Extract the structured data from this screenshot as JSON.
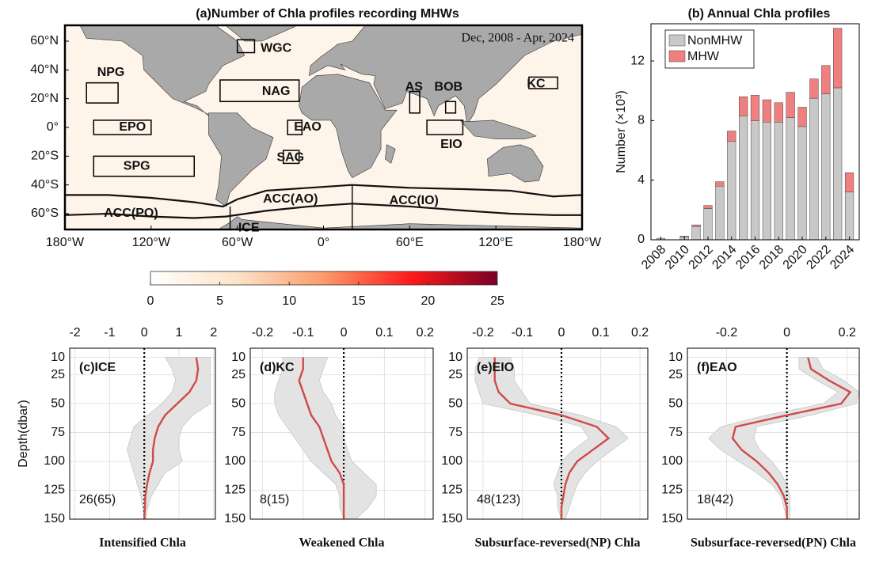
{
  "chart_data": [
    {
      "type": "map",
      "title": "(a)Number of Chla profiles recording MHWs",
      "subtitle": "Dec, 2008 - Apr, 2024",
      "xlim": [
        -180,
        180
      ],
      "ylim": [
        -71,
        71
      ],
      "xticks": [
        {
          "value": -180,
          "label": "180°W"
        },
        {
          "value": -120,
          "label": "120°W"
        },
        {
          "value": -60,
          "label": "60°W"
        },
        {
          "value": 0,
          "label": "0°"
        },
        {
          "value": 60,
          "label": "60°E"
        },
        {
          "value": 120,
          "label": "120°E"
        },
        {
          "value": 180,
          "label": "180°W"
        }
      ],
      "yticks": [
        {
          "value": 60,
          "label": "60°N"
        },
        {
          "value": 40,
          "label": "40°N"
        },
        {
          "value": 20,
          "label": "20°N"
        },
        {
          "value": 0,
          "label": "0°"
        },
        {
          "value": -20,
          "label": "20°S"
        },
        {
          "value": -40,
          "label": "40°S"
        },
        {
          "value": -60,
          "label": "60°S"
        }
      ],
      "regions": [
        "NPG",
        "WGC",
        "NAG",
        "AS",
        "BOB",
        "KC",
        "EPO",
        "EAO",
        "EIO",
        "SAG",
        "SPG",
        "ACC(AO)",
        "ACC(IO)",
        "ACC(PO)",
        "ICE"
      ],
      "colorbar": {
        "lim": [
          0,
          25
        ],
        "ticks": [
          0,
          5,
          10,
          15,
          20,
          25
        ],
        "colors": [
          "#ffffff",
          "#fde3c8",
          "#fb9a6a",
          "#ff1a1a",
          "#7a0026"
        ]
      }
    },
    {
      "type": "bar",
      "stacked": true,
      "title": "(b) Annual Chla profiles",
      "categories": [
        "2008",
        null,
        "2010",
        null,
        "2012",
        null,
        "2014",
        null,
        "2016",
        null,
        "2018",
        null,
        "2020",
        null,
        "2022",
        null,
        "2024"
      ],
      "series": [
        {
          "name": "NonMHW",
          "color": "#c8c8c8",
          "values": [
            0.1,
            0,
            0.2,
            0.9,
            2.1,
            3.6,
            6.6,
            8.3,
            8.0,
            7.9,
            7.9,
            8.2,
            7.6,
            9.5,
            9.8,
            10.2,
            3.2
          ]
        },
        {
          "name": "MHW",
          "color": "#f08080",
          "values": [
            0,
            0,
            0.05,
            0.1,
            0.2,
            0.3,
            0.7,
            1.3,
            1.7,
            1.5,
            1.3,
            1.7,
            1.3,
            1.3,
            1.9,
            4.0,
            1.3
          ]
        }
      ],
      "ylim": [
        0,
        14.5
      ],
      "yticks": [
        0,
        4,
        8,
        12
      ],
      "ylabel": "Number (×10³)",
      "legend": "upper left"
    },
    {
      "type": "profile",
      "panel": "(c)ICE",
      "annotation": "26(65)",
      "xlabel": "Intensified Chla",
      "ylabel": "Depth(dbar)",
      "color": "#d04a4a",
      "band_color": "#e3e3e3",
      "depth": [
        10,
        20,
        30,
        40,
        50,
        60,
        70,
        80,
        90,
        100,
        110,
        120,
        130,
        140,
        150
      ],
      "mean": [
        1.5,
        1.55,
        1.5,
        1.3,
        0.95,
        0.6,
        0.4,
        0.3,
        0.25,
        0.25,
        0.15,
        0.08,
        0.03,
        0.02,
        0
      ],
      "lower": [
        0.6,
        0.8,
        0.9,
        0.8,
        0.5,
        0.1,
        -0.3,
        -0.4,
        -0.5,
        -0.4,
        -0.3,
        -0.2,
        -0.1,
        -0.05,
        0
      ],
      "upper": [
        1.9,
        1.9,
        1.9,
        1.9,
        1.9,
        1.4,
        1.1,
        1.0,
        1.0,
        1.1,
        0.6,
        0.4,
        0.2,
        0.1,
        0.05
      ],
      "xlim": [
        -2.15,
        2.05
      ],
      "xticks": [
        -2,
        -1,
        0,
        1,
        2
      ],
      "reference_x": 0,
      "ylim": [
        2,
        150
      ],
      "yticks": [
        10,
        25,
        50,
        75,
        100,
        125,
        150
      ],
      "inverted": true,
      "grid": true
    },
    {
      "type": "profile",
      "panel": "(d)KC",
      "annotation": "8(15)",
      "xlabel": "Weakened Chla",
      "color": "#d04a4a",
      "band_color": "#e3e3e3",
      "depth": [
        10,
        20,
        30,
        40,
        50,
        60,
        70,
        80,
        90,
        100,
        110,
        120,
        130,
        140,
        150
      ],
      "mean": [
        -0.1,
        -0.1,
        -0.11,
        -0.1,
        -0.09,
        -0.08,
        -0.06,
        -0.05,
        -0.04,
        -0.03,
        -0.01,
        0,
        0,
        0,
        0
      ],
      "lower": [
        -0.15,
        -0.15,
        -0.16,
        -0.17,
        -0.17,
        -0.16,
        -0.14,
        -0.12,
        -0.1,
        -0.08,
        -0.05,
        -0.02,
        -0.01,
        -0.01,
        0
      ],
      "upper": [
        -0.04,
        -0.05,
        -0.06,
        -0.05,
        -0.03,
        -0.02,
        0,
        0,
        0.01,
        0.02,
        0.05,
        0.08,
        0.08,
        0.06,
        0.03
      ],
      "xlim": [
        -0.23,
        0.22
      ],
      "xticks": [
        -0.2,
        -0.1,
        0,
        0.1,
        0.2
      ],
      "reference_x": 0,
      "ylim": [
        2,
        150
      ],
      "yticks": [
        10,
        25,
        50,
        75,
        100,
        125,
        150
      ],
      "inverted": true,
      "grid": true
    },
    {
      "type": "profile",
      "panel": "(e)EIO",
      "annotation": "48(123)",
      "xlabel": "Subsurface-reversed(NP) Chla",
      "color": "#d04a4a",
      "band_color": "#e3e3e3",
      "depth": [
        10,
        20,
        30,
        40,
        50,
        60,
        70,
        80,
        90,
        100,
        110,
        120,
        130,
        140,
        150
      ],
      "mean": [
        -0.17,
        -0.17,
        -0.17,
        -0.16,
        -0.13,
        0,
        0.09,
        0.12,
        0.08,
        0.04,
        0.02,
        0.01,
        0.005,
        0,
        0
      ],
      "lower": [
        -0.21,
        -0.22,
        -0.22,
        -0.21,
        -0.2,
        -0.06,
        0.05,
        0.07,
        0.03,
        0,
        -0.01,
        -0.02,
        -0.01,
        -0.01,
        0
      ],
      "upper": [
        -0.13,
        -0.12,
        -0.12,
        -0.1,
        -0.08,
        0.05,
        0.14,
        0.17,
        0.13,
        0.09,
        0.06,
        0.04,
        0.03,
        0.02,
        0.01
      ],
      "xlim": [
        -0.24,
        0.22
      ],
      "xticks": [
        -0.2,
        -0.1,
        0,
        0.1,
        0.2
      ],
      "reference_x": 0,
      "ylim": [
        2,
        150
      ],
      "yticks": [
        10,
        25,
        50,
        75,
        100,
        125,
        150
      ],
      "inverted": true,
      "grid": true
    },
    {
      "type": "profile",
      "panel": "(f)EAO",
      "annotation": "18(42)",
      "xlabel": "Subsurface-reversed(PN) Chla",
      "color": "#d04a4a",
      "band_color": "#e3e3e3",
      "depth": [
        10,
        20,
        30,
        40,
        50,
        60,
        70,
        80,
        90,
        100,
        110,
        120,
        130,
        140,
        150
      ],
      "mean": [
        0.07,
        0.08,
        0.14,
        0.21,
        0.18,
        0,
        -0.17,
        -0.18,
        -0.15,
        -0.1,
        -0.06,
        -0.03,
        -0.01,
        0,
        0
      ],
      "lower": [
        0.04,
        0.04,
        0.1,
        0.17,
        0.12,
        -0.07,
        -0.22,
        -0.26,
        -0.22,
        -0.16,
        -0.1,
        -0.05,
        -0.02,
        -0.01,
        0
      ],
      "upper": [
        0.1,
        0.12,
        0.19,
        0.24,
        0.23,
        0.08,
        -0.1,
        -0.11,
        -0.09,
        -0.05,
        -0.02,
        0,
        0.01,
        0.01,
        0.01
      ],
      "xlim": [
        -0.33,
        0.24
      ],
      "xticks": [
        -0.2,
        0,
        0.2
      ],
      "reference_x": 0,
      "ylim": [
        2,
        150
      ],
      "yticks": [
        10,
        25,
        50,
        75,
        100,
        125,
        150
      ],
      "inverted": true,
      "grid": true
    }
  ]
}
